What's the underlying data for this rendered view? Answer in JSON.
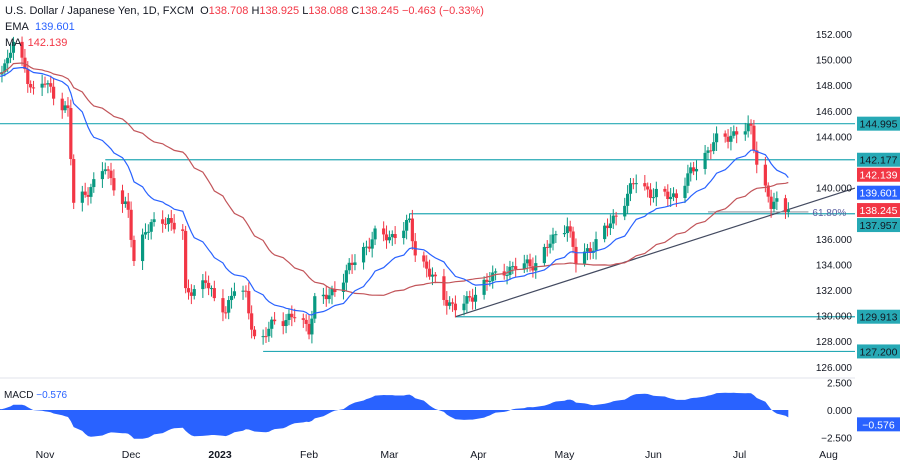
{
  "header": {
    "symbol": "U.S. Dollar / Japanese Yen, 1D, FXCM",
    "open_label": "O",
    "open": "138.708",
    "high_label": "H",
    "high": "138.925",
    "low_label": "L",
    "low": "138.088",
    "close_label": "C",
    "close": "138.245",
    "change": "−0.463 (−0.33%)"
  },
  "indicators": {
    "ema_label": "EMA",
    "ema_value": "139.601",
    "ma_label": "MA",
    "ma_value": "142.139",
    "macd_label": "MACD",
    "macd_value": "−0.576"
  },
  "colors": {
    "up": "#089981",
    "down": "#f23645",
    "ema": "#2962ff",
    "ma": "#c2555a",
    "level": "#26a9b5",
    "trend": "#434a60",
    "macd": "#2962ff"
  },
  "chart_data": {
    "type": "candlestick",
    "symbol": "USDJPY",
    "timeframe": "1D",
    "ylim": [
      125.5,
      153.2
    ],
    "y_ticks": [
      "152.000",
      "150.000",
      "148.000",
      "146.000",
      "144.000",
      "140.000",
      "136.000",
      "134.000",
      "132.000",
      "130.000",
      "128.000",
      "126.000"
    ],
    "x_ticks": [
      {
        "label": "Nov",
        "date": "2022-11-01"
      },
      {
        "label": "Dec",
        "date": "2022-12-01"
      },
      {
        "label": "2023",
        "date": "2023-01-01"
      },
      {
        "label": "Feb",
        "date": "2023-02-01"
      },
      {
        "label": "Mar",
        "date": "2023-03-01"
      },
      {
        "label": "Apr",
        "date": "2023-04-01"
      },
      {
        "label": "May",
        "date": "2023-05-01"
      },
      {
        "label": "Jun",
        "date": "2023-06-01"
      },
      {
        "label": "Jul",
        "date": "2023-07-01"
      },
      {
        "label": "Aug",
        "date": "2023-08-01"
      }
    ],
    "closes": [
      [
        "2022-10-12",
        148.6
      ],
      [
        "2022-10-19",
        149.9
      ],
      [
        "2022-10-21",
        151.4
      ],
      [
        "2022-10-28",
        147.5
      ],
      [
        "2022-11-01",
        148.2
      ],
      [
        "2022-11-09",
        145.9
      ],
      [
        "2022-11-11",
        138.8
      ],
      [
        "2022-11-18",
        140.2
      ],
      [
        "2022-11-22",
        141.6
      ],
      [
        "2022-11-30",
        138.0
      ],
      [
        "2022-12-02",
        134.3
      ],
      [
        "2022-12-06",
        136.8
      ],
      [
        "2022-12-14",
        137.5
      ],
      [
        "2022-12-19",
        136.5
      ],
      [
        "2022-12-20",
        131.6
      ],
      [
        "2022-12-27",
        132.8
      ],
      [
        "2022-12-30",
        131.1
      ],
      [
        "2023-01-03",
        130.5
      ],
      [
        "2023-01-06",
        132.1
      ],
      [
        "2023-01-10",
        131.5
      ],
      [
        "2023-01-13",
        128.3
      ],
      [
        "2023-01-16",
        128.2
      ],
      [
        "2023-01-20",
        129.6
      ],
      [
        "2023-01-27",
        129.9
      ],
      [
        "2023-02-01",
        129.0
      ],
      [
        "2023-02-03",
        131.2
      ],
      [
        "2023-02-08",
        131.5
      ],
      [
        "2023-02-16",
        134.0
      ],
      [
        "2023-02-24",
        136.3
      ],
      [
        "2023-03-01",
        136.1
      ],
      [
        "2023-03-08",
        137.2
      ],
      [
        "2023-03-10",
        134.9
      ],
      [
        "2023-03-14",
        133.8
      ],
      [
        "2023-03-20",
        131.3
      ],
      [
        "2023-03-24",
        130.7
      ],
      [
        "2023-03-28",
        131.0
      ],
      [
        "2023-04-03",
        132.6
      ],
      [
        "2023-04-10",
        133.5
      ],
      [
        "2023-04-14",
        133.8
      ],
      [
        "2023-04-21",
        134.1
      ],
      [
        "2023-04-28",
        136.3
      ],
      [
        "2023-05-02",
        137.2
      ],
      [
        "2023-05-05",
        134.2
      ],
      [
        "2023-05-12",
        135.7
      ],
      [
        "2023-05-19",
        137.9
      ],
      [
        "2023-05-26",
        140.6
      ],
      [
        "2023-06-01",
        139.4
      ],
      [
        "2023-06-09",
        139.4
      ],
      [
        "2023-06-16",
        141.8
      ],
      [
        "2023-06-23",
        143.7
      ],
      [
        "2023-06-30",
        144.3
      ],
      [
        "2023-07-05",
        144.6
      ],
      [
        "2023-07-07",
        142.1
      ],
      [
        "2023-07-12",
        138.5
      ],
      [
        "2023-07-14",
        138.8
      ],
      [
        "2023-07-18",
        138.245
      ]
    ],
    "levels": [
      {
        "price": 144.995,
        "label": "144.995",
        "from": "2022-10-10"
      },
      {
        "price": 142.177,
        "label": "142.177",
        "from": "2022-11-22"
      },
      {
        "price": 137.957,
        "label": "137.957",
        "from": "2023-03-08"
      },
      {
        "price": 129.913,
        "label": "129.913",
        "from": "2023-03-24"
      },
      {
        "price": 127.2,
        "label": "127.200",
        "from": "2023-01-16"
      }
    ],
    "trendline": {
      "from": [
        "2023-03-24",
        129.913
      ],
      "through": [
        "2023-07-14",
        138.0
      ]
    },
    "fib": {
      "label": "61.80%",
      "price": 138.1,
      "from": "2023-06-20",
      "to": "2023-07-25"
    },
    "badges": [
      {
        "label": "142.139",
        "price": 142.139,
        "color": "#f23645"
      },
      {
        "label": "139.601",
        "price": 139.601,
        "color": "#2962ff"
      },
      {
        "label": "138.245",
        "price": 138.245,
        "color": "#f23645"
      }
    ],
    "ema_period": 20,
    "ma_period": 50,
    "macd": {
      "ticks": [
        "2.500",
        "0.000",
        "−2.500"
      ],
      "last": "−0.576"
    }
  }
}
